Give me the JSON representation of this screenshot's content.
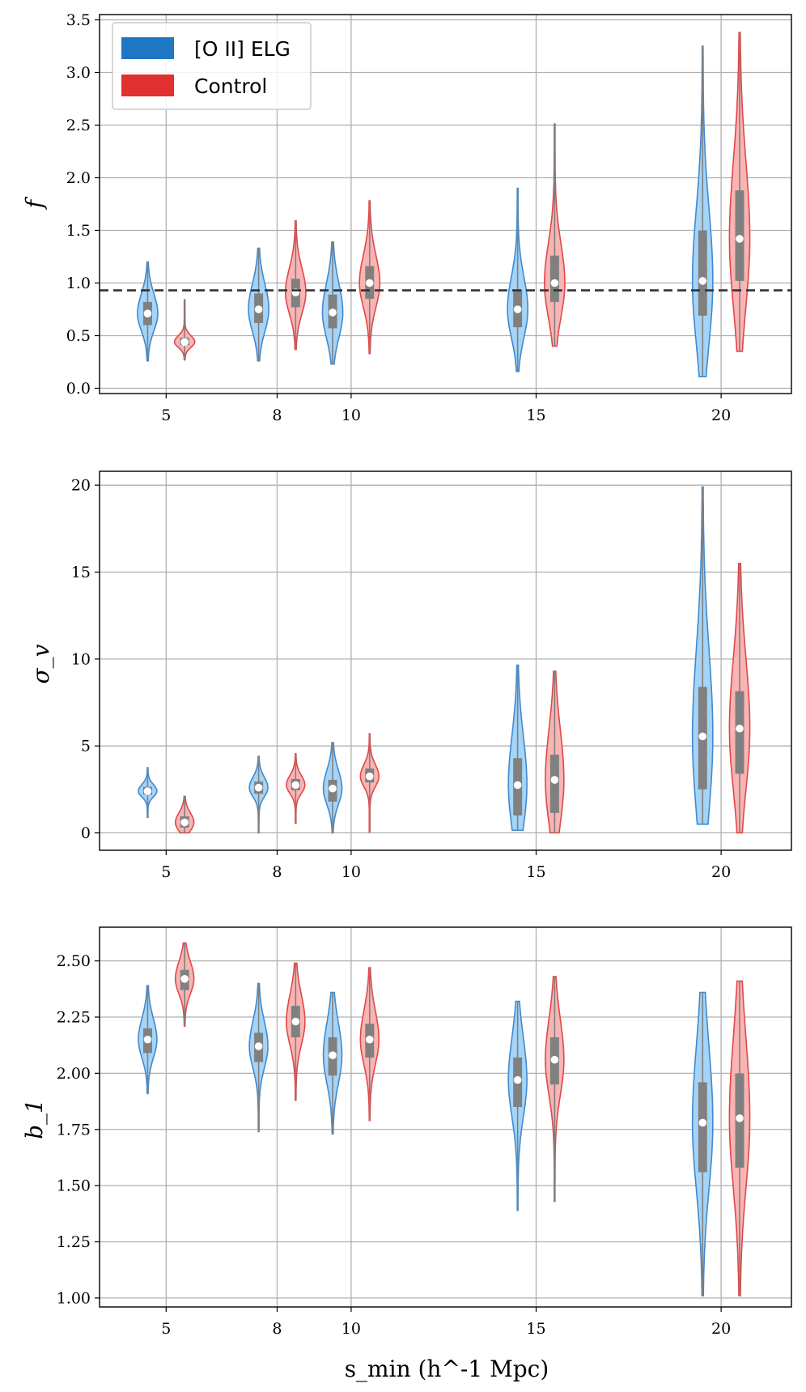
{
  "chart_data": {
    "type": "violin",
    "xlabel": "s_min (h^-1 Mpc)",
    "x_ticks": [
      5,
      8,
      10,
      15,
      20
    ],
    "xlim": [
      3.2,
      21.9
    ],
    "legend": {
      "location": "top-left",
      "entries": [
        {
          "label": "[O II] ELG",
          "color": "#1f77c4"
        },
        {
          "label": "Control",
          "color": "#e03030"
        }
      ]
    },
    "colors": {
      "elg_fill": "#a5d4f7",
      "elg_edge": "#3f8ad0",
      "control_fill": "#f9b4b4",
      "control_edge": "#e04848",
      "box": "#808080",
      "median": "#ffffff",
      "grid": "#b0b0b0"
    },
    "panels": [
      {
        "id": "f",
        "ylabel": "f",
        "ylim": [
          -0.05,
          3.55
        ],
        "yticks": [
          0.0,
          0.5,
          1.0,
          1.5,
          2.0,
          2.5,
          3.0,
          3.5
        ],
        "tick_format": 1,
        "reference_line": 0.93,
        "series": [
          {
            "name": "[O II] ELG",
            "x": [
              4.5,
              7.5,
              9.5,
              14.5,
              19.5
            ],
            "median": [
              0.71,
              0.75,
              0.72,
              0.75,
              1.02
            ],
            "q1": [
              0.6,
              0.62,
              0.57,
              0.58,
              0.69
            ],
            "q3": [
              0.82,
              0.9,
              0.89,
              0.94,
              1.5
            ],
            "min": [
              0.26,
              0.26,
              0.23,
              0.16,
              0.11
            ],
            "max": [
              1.2,
              1.33,
              1.39,
              1.9,
              3.25
            ],
            "width": [
              0.55,
              0.55,
              0.55,
              0.55,
              0.55
            ]
          },
          {
            "name": "Control",
            "x": [
              5.5,
              8.5,
              10.5,
              15.5,
              20.5
            ],
            "median": [
              0.44,
              0.91,
              1.0,
              1.0,
              1.42
            ],
            "q1": [
              0.41,
              0.77,
              0.85,
              0.82,
              1.02
            ],
            "q3": [
              0.48,
              1.04,
              1.16,
              1.26,
              1.88
            ],
            "min": [
              0.27,
              0.37,
              0.33,
              0.4,
              0.35
            ],
            "max": [
              0.84,
              1.59,
              1.78,
              2.51,
              3.38
            ],
            "width": [
              0.55,
              0.55,
              0.55,
              0.55,
              0.55
            ]
          }
        ]
      },
      {
        "id": "sigma_v",
        "ylabel": "σ_v",
        "ylim": [
          -1.0,
          20.8
        ],
        "yticks": [
          0,
          5,
          10,
          15,
          20
        ],
        "tick_format": 0,
        "reference_line": null,
        "series": [
          {
            "name": "[O II] ELG",
            "x": [
              4.5,
              7.5,
              9.5,
              14.5,
              19.5
            ],
            "median": [
              2.4,
              2.6,
              2.55,
              2.75,
              5.55
            ],
            "q1": [
              2.2,
              2.25,
              1.8,
              1.0,
              2.5
            ],
            "q3": [
              2.65,
              2.95,
              3.05,
              4.3,
              8.4
            ],
            "min": [
              0.9,
              0.0,
              0.0,
              0.15,
              0.5
            ],
            "max": [
              3.75,
              4.4,
              5.2,
              9.65,
              19.9
            ],
            "width": [
              0.5,
              0.5,
              0.5,
              0.5,
              0.55
            ]
          },
          {
            "name": "Control",
            "x": [
              5.5,
              8.5,
              10.5,
              15.5,
              20.5
            ],
            "median": [
              0.6,
              2.75,
              3.25,
              3.05,
              6.0
            ],
            "q1": [
              0.3,
              2.45,
              2.9,
              1.15,
              3.4
            ],
            "q3": [
              0.95,
              3.1,
              3.7,
              4.5,
              8.15
            ],
            "min": [
              0.0,
              0.55,
              0.05,
              0.0,
              0.0
            ],
            "max": [
              2.1,
              4.55,
              5.7,
              9.3,
              15.5
            ],
            "width": [
              0.5,
              0.5,
              0.5,
              0.5,
              0.55
            ]
          }
        ]
      },
      {
        "id": "b1",
        "ylabel": "b_1",
        "ylim": [
          0.96,
          2.65
        ],
        "yticks": [
          1.0,
          1.25,
          1.5,
          1.75,
          2.0,
          2.25,
          2.5
        ],
        "tick_format": 2,
        "reference_line": null,
        "series": [
          {
            "name": "[O II] ELG",
            "x": [
              4.5,
              7.5,
              9.5,
              14.5,
              19.5
            ],
            "median": [
              2.15,
              2.12,
              2.08,
              1.97,
              1.78
            ],
            "q1": [
              2.09,
              2.05,
              1.99,
              1.85,
              1.56
            ],
            "q3": [
              2.2,
              2.18,
              2.16,
              2.07,
              1.96
            ],
            "min": [
              1.91,
              1.74,
              1.73,
              1.39,
              1.01
            ],
            "max": [
              2.39,
              2.4,
              2.36,
              2.32,
              2.36
            ],
            "width": [
              0.5,
              0.5,
              0.5,
              0.5,
              0.55
            ]
          },
          {
            "name": "Control",
            "x": [
              5.5,
              8.5,
              10.5,
              15.5,
              20.5
            ],
            "median": [
              2.42,
              2.23,
              2.15,
              2.06,
              1.8
            ],
            "q1": [
              2.37,
              2.16,
              2.07,
              1.95,
              1.58
            ],
            "q3": [
              2.46,
              2.3,
              2.22,
              2.16,
              2.0
            ],
            "min": [
              2.21,
              1.88,
              1.79,
              1.43,
              1.01
            ],
            "max": [
              2.58,
              2.49,
              2.47,
              2.43,
              2.41
            ],
            "width": [
              0.5,
              0.5,
              0.5,
              0.5,
              0.55
            ]
          }
        ]
      }
    ]
  }
}
